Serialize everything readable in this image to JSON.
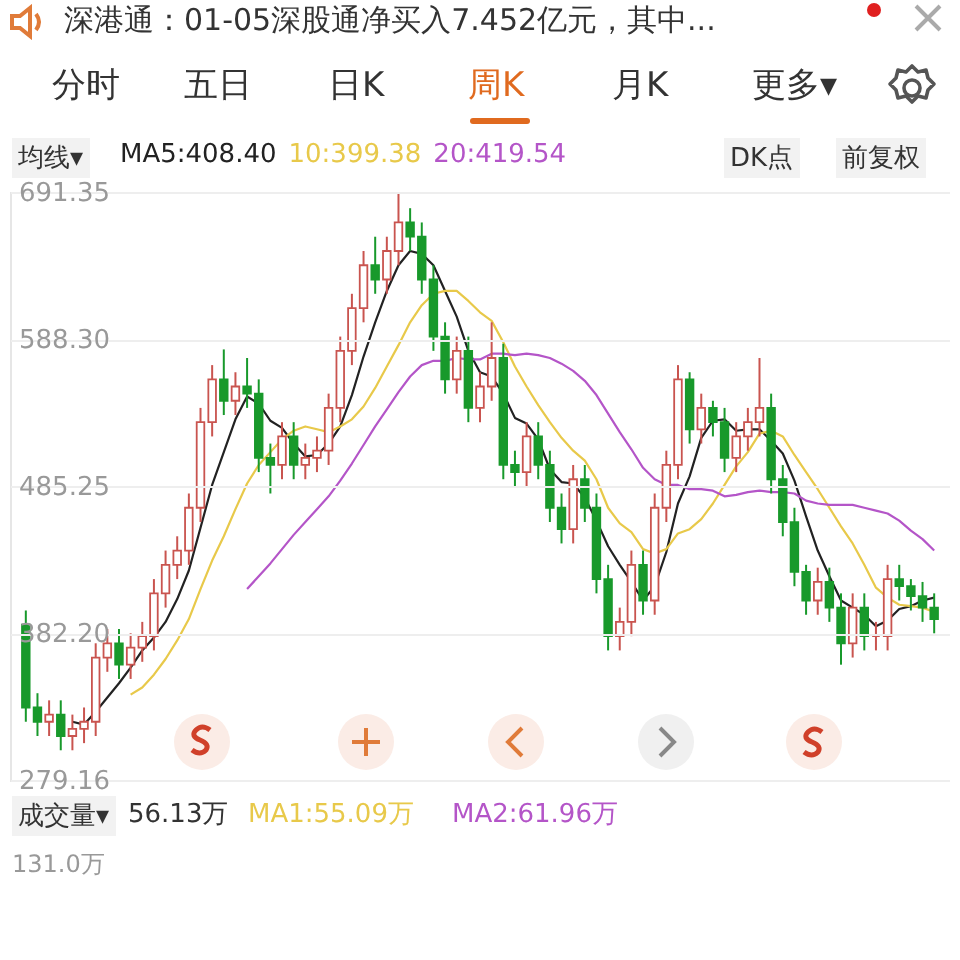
{
  "chart_data": {
    "type": "candlestick",
    "categories": [
      null,
      null,
      null,
      null,
      null,
      null,
      null,
      null,
      null,
      null,
      null,
      null,
      null,
      null,
      null,
      null,
      null,
      null,
      null,
      null,
      null,
      null,
      null,
      null,
      null,
      null,
      null,
      null,
      null,
      null,
      null,
      null,
      null,
      null,
      null,
      null,
      null,
      null,
      null,
      null,
      null,
      null,
      null,
      null,
      null,
      null,
      null,
      null,
      null,
      null,
      null,
      null,
      null,
      null,
      null,
      null,
      null,
      null,
      null,
      null,
      null,
      null,
      null,
      null,
      null,
      null,
      null,
      null,
      null,
      null,
      null,
      null,
      null,
      null,
      null,
      null,
      null,
      null,
      null
    ],
    "ohlc": [
      [
        388,
        398,
        320,
        330
      ],
      [
        330,
        340,
        310,
        320
      ],
      [
        320,
        335,
        310,
        325
      ],
      [
        325,
        335,
        300,
        310
      ],
      [
        310,
        325,
        300,
        315
      ],
      [
        315,
        330,
        305,
        320
      ],
      [
        320,
        375,
        310,
        365
      ],
      [
        365,
        385,
        355,
        375
      ],
      [
        375,
        385,
        350,
        360
      ],
      [
        360,
        382,
        350,
        372
      ],
      [
        372,
        390,
        362,
        380
      ],
      [
        380,
        420,
        370,
        410
      ],
      [
        410,
        440,
        400,
        430
      ],
      [
        430,
        450,
        420,
        440
      ],
      [
        440,
        480,
        430,
        470
      ],
      [
        470,
        540,
        460,
        530
      ],
      [
        530,
        570,
        520,
        560
      ],
      [
        560,
        581,
        535,
        545
      ],
      [
        545,
        565,
        535,
        555
      ],
      [
        555,
        575,
        540,
        550
      ],
      [
        550,
        560,
        495,
        505
      ],
      [
        505,
        515,
        480,
        500
      ],
      [
        500,
        530,
        490,
        520
      ],
      [
        520,
        530,
        490,
        500
      ],
      [
        500,
        515,
        490,
        505
      ],
      [
        505,
        520,
        495,
        510
      ],
      [
        510,
        550,
        500,
        540
      ],
      [
        540,
        590,
        530,
        580
      ],
      [
        580,
        620,
        570,
        610
      ],
      [
        610,
        650,
        600,
        640
      ],
      [
        640,
        660,
        620,
        630
      ],
      [
        630,
        660,
        620,
        650
      ],
      [
        650,
        691.35,
        640,
        670
      ],
      [
        670,
        680,
        650,
        660
      ],
      [
        660,
        670,
        620,
        630
      ],
      [
        630,
        640,
        580,
        590
      ],
      [
        590,
        600,
        550,
        560
      ],
      [
        560,
        590,
        550,
        580
      ],
      [
        580,
        590,
        530,
        540
      ],
      [
        540,
        565,
        530,
        555
      ],
      [
        555,
        600,
        545,
        575
      ],
      [
        575,
        585,
        490,
        500
      ],
      [
        500,
        510,
        485,
        495
      ],
      [
        495,
        530,
        485,
        520
      ],
      [
        520,
        530,
        490,
        500
      ],
      [
        500,
        510,
        460,
        470
      ],
      [
        470,
        480,
        445,
        455
      ],
      [
        455,
        500,
        445,
        490
      ],
      [
        490,
        500,
        460,
        470
      ],
      [
        470,
        480,
        410,
        420
      ],
      [
        420,
        430,
        370,
        380
      ],
      [
        380,
        400,
        370,
        390
      ],
      [
        390,
        440,
        380,
        430
      ],
      [
        430,
        440,
        395,
        405
      ],
      [
        405,
        480,
        395,
        470
      ],
      [
        470,
        510,
        460,
        500
      ],
      [
        500,
        570,
        490,
        560
      ],
      [
        560,
        565,
        515,
        525
      ],
      [
        525,
        550,
        515,
        540
      ],
      [
        540,
        545,
        520,
        530
      ],
      [
        530,
        540,
        495,
        505
      ],
      [
        505,
        530,
        495,
        520
      ],
      [
        520,
        540,
        510,
        530
      ],
      [
        530,
        575,
        520,
        540
      ],
      [
        540,
        550,
        480,
        490
      ],
      [
        490,
        500,
        450,
        460
      ],
      [
        460,
        470,
        415,
        425
      ],
      [
        425,
        430,
        395,
        405
      ],
      [
        405,
        428,
        395,
        418
      ],
      [
        418,
        428,
        390,
        400
      ],
      [
        400,
        410,
        360,
        375
      ],
      [
        375,
        410,
        365,
        400
      ],
      [
        400,
        410,
        370,
        380
      ],
      [
        380,
        390,
        370,
        380
      ],
      [
        380,
        430,
        370,
        420
      ],
      [
        420,
        430,
        405,
        415
      ],
      [
        415,
        420,
        398,
        408
      ],
      [
        408,
        418,
        390,
        400
      ],
      [
        400,
        410,
        382,
        392
      ]
    ],
    "colors": [
      "#18992b",
      "#18992b",
      "#c9544f",
      "#18992b",
      "#c9544f",
      "#c9544f",
      "#c9544f",
      "#c9544f",
      "#18992b",
      "#c9544f",
      "#c9544f",
      "#c9544f",
      "#c9544f",
      "#c9544f",
      "#c9544f",
      "#c9544f",
      "#c9544f",
      "#18992b",
      "#c9544f",
      "#18992b",
      "#18992b",
      "#18992b",
      "#c9544f",
      "#18992b",
      "#c9544f",
      "#c9544f",
      "#c9544f",
      "#c9544f",
      "#c9544f",
      "#c9544f",
      "#18992b",
      "#c9544f",
      "#c9544f",
      "#18992b",
      "#18992b",
      "#18992b",
      "#18992b",
      "#c9544f",
      "#18992b",
      "#c9544f",
      "#c9544f",
      "#18992b",
      "#18992b",
      "#c9544f",
      "#18992b",
      "#18992b",
      "#18992b",
      "#c9544f",
      "#18992b",
      "#18992b",
      "#18992b",
      "#c9544f",
      "#c9544f",
      "#18992b",
      "#c9544f",
      "#c9544f",
      "#c9544f",
      "#18992b",
      "#c9544f",
      "#18992b",
      "#18992b",
      "#c9544f",
      "#c9544f",
      "#c9544f",
      "#18992b",
      "#18992b",
      "#18992b",
      "#18992b",
      "#c9544f",
      "#18992b",
      "#18992b",
      "#c9544f",
      "#18992b",
      "#c9544f",
      "#c9544f",
      "#18992b",
      "#18992b",
      "#18992b",
      "#18992b"
    ],
    "series": [
      {
        "name": "MA5:408.40",
        "color": "#222222",
        "type": "line",
        "values": [
          null,
          null,
          null,
          null,
          320,
          318,
          327,
          337,
          347,
          358,
          370,
          379,
          390,
          406,
          426,
          456,
          486,
          509,
          532,
          548,
          543,
          531,
          526,
          515,
          506,
          507,
          515,
          527,
          549,
          576,
          600,
          622,
          640,
          650,
          648,
          640,
          622,
          604,
          580,
          565,
          562,
          550,
          533,
          529,
          518,
          497,
          488,
          487,
          477,
          461,
          443,
          430,
          418,
          405,
          415,
          439,
          473,
          492,
          519,
          531,
          532,
          524,
          525,
          525,
          517,
          508,
          489,
          464,
          440,
          422,
          405,
          400,
          395,
          387,
          391,
          399,
          401,
          405,
          407
        ]
      },
      {
        "name": "10:399.38",
        "color": "#e8c94a",
        "type": "line",
        "values": [
          null,
          null,
          null,
          null,
          null,
          null,
          null,
          null,
          null,
          339,
          344,
          353,
          364,
          377,
          392,
          413,
          433,
          450,
          469,
          487,
          500,
          509,
          518,
          524,
          527,
          525,
          523,
          527,
          532,
          541,
          554,
          569,
          584,
          600,
          612,
          620,
          622,
          622,
          615,
          607,
          601,
          586,
          569,
          555,
          542,
          530,
          519,
          510,
          503,
          490,
          470,
          459,
          453,
          441,
          438,
          441,
          452,
          455,
          462,
          473,
          486,
          499,
          509,
          522,
          524,
          520,
          507,
          495,
          483,
          470,
          457,
          445,
          430,
          414,
          407,
          402,
          401,
          400,
          397
        ]
      },
      {
        "name": "20:419.54",
        "color": "#b455c8",
        "type": "line",
        "values": [
          null,
          null,
          null,
          null,
          null,
          null,
          null,
          null,
          null,
          null,
          null,
          null,
          null,
          null,
          null,
          null,
          null,
          null,
          null,
          413,
          422,
          431,
          441,
          451,
          460,
          469,
          478,
          489,
          501,
          514,
          527,
          539,
          551,
          562,
          570,
          573,
          573,
          575,
          574,
          574,
          578,
          578,
          577,
          578,
          577,
          575,
          571,
          566,
          559,
          549,
          536,
          523,
          511,
          498,
          490,
          486,
          486,
          483,
          483,
          482,
          478,
          479,
          481,
          482,
          481,
          481,
          480,
          475,
          473,
          472,
          472,
          472,
          470,
          468,
          466,
          461,
          454,
          448,
          440
        ]
      }
    ],
    "ylim": [
      279.16,
      691.35
    ],
    "yticks": [
      691.35,
      {
        "value": 588.3,
        "label": "588.30"
      },
      485.25,
      {
        "value": 382.2,
        "label": "382.20"
      },
      279.16
    ],
    "grid": true,
    "legend": "top",
    "tick_labels": "y",
    "annotations": [
      "深港通：01-05深股通净买入7.452亿元，其中...",
      "分时",
      "五日",
      "日K",
      "周K",
      "月K",
      "更多▾",
      "均线▾",
      "DK点",
      "前复权",
      "成交量▾",
      "56.13万",
      "MA1:55.09万",
      "MA2:61.96万",
      "131.0万"
    ]
  }
}
